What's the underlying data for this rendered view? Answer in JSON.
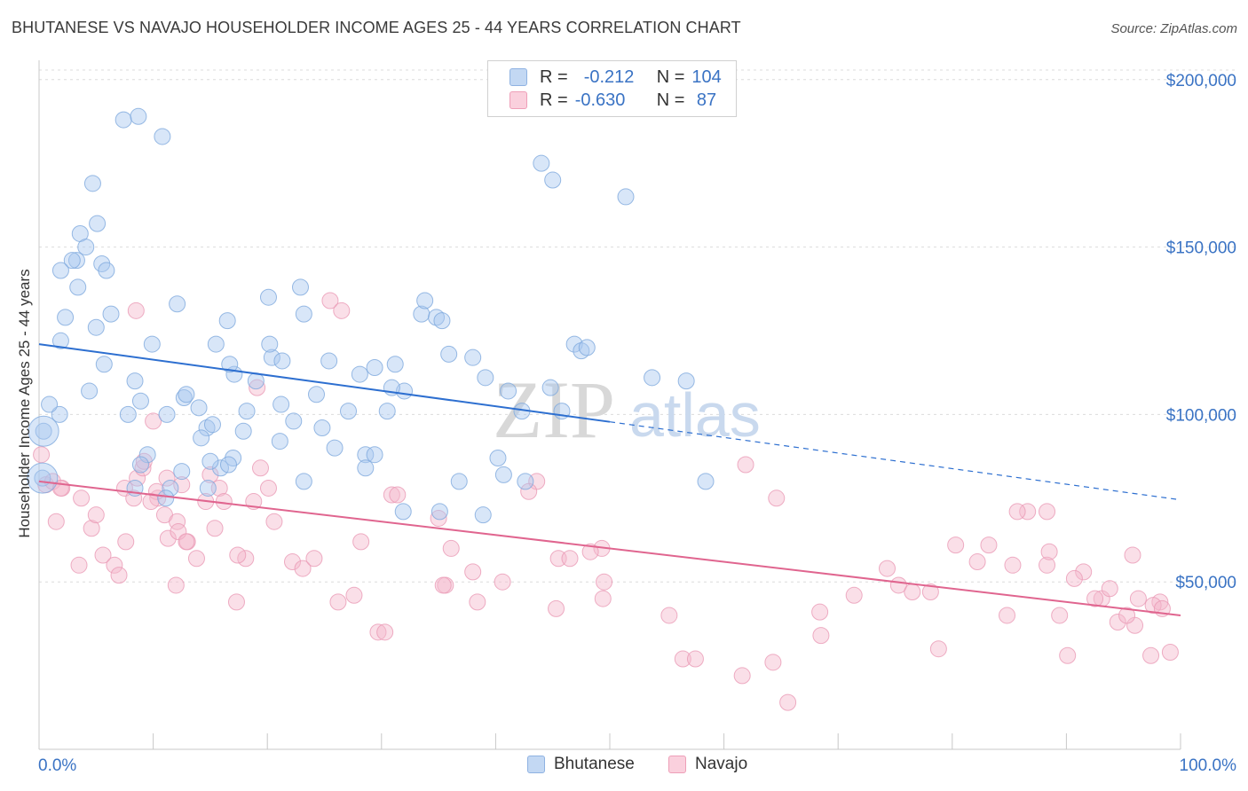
{
  "title": "BHUTANESE VS NAVAJO HOUSEHOLDER INCOME AGES 25 - 44 YEARS CORRELATION CHART",
  "source": "Source: ZipAtlas.com",
  "watermark": {
    "zip": "ZIP",
    "atlas": "atlas"
  },
  "legend": {
    "rows": [
      {
        "r_label": "R =",
        "r_value": "-0.212",
        "n_label": "N =",
        "n_value": "104",
        "color": "#a9c8ef"
      },
      {
        "r_label": "R =",
        "r_value": "-0.630",
        "n_label": "N =",
        "n_value": " 87",
        "color": "#f5b8cc"
      }
    ]
  },
  "bottom_legend": [
    "Bhutanese",
    "Navajo"
  ],
  "chart_data": {
    "type": "scatter",
    "xlabel": "",
    "ylabel": "Householder Income Ages 25 - 44 years",
    "xlim": [
      0,
      100
    ],
    "ylim": [
      0,
      210000
    ],
    "x_tick_labels": [
      "0.0%",
      "100.0%"
    ],
    "y_ticks": [
      50000,
      100000,
      150000,
      200000
    ],
    "y_tick_labels": [
      "$50,000",
      "$100,000",
      "$150,000",
      "$200,000"
    ],
    "grid": true,
    "colors": {
      "Bhutanese": "#a9c8ef",
      "Bhutanese_line": "#2d6fd0",
      "Navajo": "#f5b8cc",
      "Navajo_line": "#e0658f",
      "axis_text": "#3a73c4"
    },
    "series": [
      {
        "name": "Bhutanese",
        "trend": {
          "x": [
            0,
            50,
            100
          ],
          "y": [
            121000,
            97800,
            74500
          ],
          "solid_until": 50
        },
        "x": [
          7.4,
          8.7,
          10.8,
          4.7,
          5.1,
          3.6,
          4.1,
          3.3,
          5.5,
          2.9,
          1.9,
          2.3,
          3.4,
          5.9,
          5.0,
          1.9,
          6.3,
          1.8,
          0.9,
          0.4,
          0.3,
          5.7,
          4.4,
          8.4,
          12.1,
          9.9,
          8.9,
          15.5,
          12.7,
          14.0,
          12.9,
          17.1,
          16.7,
          11.2,
          17.9,
          14.7,
          16.5,
          20.1,
          20.4,
          22.9,
          23.2,
          7.8,
          9.5,
          8.4,
          15.9,
          15.2,
          11.5,
          8.9,
          14.2,
          15.0,
          17.0,
          20.2,
          25.4,
          21.3,
          22.3,
          24.8,
          21.2,
          18.2,
          28.6,
          29.4,
          24.3,
          31.2,
          27.1,
          28.1,
          33.5,
          32.0,
          34.8,
          30.9,
          29.4,
          30.5,
          23.2,
          25.9,
          28.6,
          19.0,
          14.8,
          12.5,
          11.1,
          16.6,
          21.1,
          36.8,
          31.9,
          35.1,
          39.1,
          41.1,
          42.3,
          35.9,
          35.3,
          33.8,
          38.0,
          46.9,
          47.5,
          48.0,
          51.4,
          53.7,
          56.7,
          58.4,
          40.2,
          40.7,
          38.9,
          42.6,
          45.8,
          44.8,
          44.0,
          45.0
        ],
        "y": [
          188000,
          189000,
          183000,
          169000,
          157000,
          154000,
          150000,
          146000,
          145000,
          146000,
          143000,
          129000,
          138000,
          143000,
          126000,
          122000,
          130000,
          100000,
          103000,
          95000,
          81000,
          115000,
          107000,
          110000,
          133000,
          121000,
          104000,
          121000,
          105000,
          102000,
          106000,
          112000,
          115000,
          100000,
          95000,
          96000,
          128000,
          135000,
          117000,
          138000,
          130000,
          100000,
          88000,
          78000,
          84000,
          97000,
          78000,
          85000,
          93000,
          86000,
          87000,
          121000,
          116000,
          116000,
          98000,
          96000,
          103000,
          101000,
          88000,
          114000,
          106000,
          115000,
          101000,
          112000,
          130000,
          107000,
          129000,
          108000,
          88000,
          101000,
          80000,
          90000,
          84000,
          110000,
          78000,
          83000,
          75000,
          85000,
          92000,
          80000,
          71000,
          71000,
          111000,
          107000,
          101000,
          118000,
          128000,
          134000,
          117000,
          121000,
          119000,
          120000,
          165000,
          111000,
          110000,
          80000,
          87000,
          82000,
          70000,
          80000,
          101000,
          108000,
          175000,
          170000
        ],
        "sizes_large": [
          {
            "x": 0.3,
            "y": 81000
          },
          {
            "x": 0.4,
            "y": 95000
          }
        ]
      },
      {
        "name": "Navajo",
        "trend": {
          "x": [
            0,
            100
          ],
          "y": [
            80000,
            40000
          ]
        },
        "x": [
          0.2,
          0.6,
          1.2,
          1.5,
          2.0,
          3.5,
          3.7,
          4.6,
          5.0,
          5.6,
          6.6,
          7.0,
          7.6,
          8.6,
          9.1,
          9.2,
          10.0,
          10.4,
          11.0,
          11.3,
          12.0,
          12.5,
          13.0,
          14.6,
          15.0,
          15.8,
          16.2,
          17.3,
          18.1,
          18.8,
          19.1,
          19.4,
          20.1,
          20.6,
          22.2,
          23.1,
          24.1,
          26.2,
          27.6,
          28.2,
          29.7,
          30.3,
          30.9,
          31.4,
          35.6,
          35.4,
          35.0,
          36.1,
          38.0,
          38.4,
          40.6,
          45.3,
          45.5,
          46.5,
          49.4,
          49.5,
          55.2,
          56.4,
          57.5,
          61.9,
          61.6,
          64.3,
          64.6,
          68.4,
          68.5,
          71.4,
          74.3,
          75.3,
          76.5,
          78.1,
          78.8,
          80.3,
          82.2,
          83.2,
          84.8,
          85.3,
          88.3,
          89.4,
          90.1,
          91.5,
          93.1,
          93.8,
          94.5,
          96.0,
          97.4,
          98.2,
          99.1
        ],
        "y": [
          88000,
          79000,
          80000,
          68000,
          78000,
          55000,
          75000,
          66000,
          70000,
          58000,
          55000,
          52000,
          62000,
          81000,
          84000,
          86000,
          98000,
          75000,
          70000,
          63000,
          49000,
          79000,
          62000,
          74000,
          82000,
          78000,
          74000,
          44000,
          57000,
          74000,
          108000,
          84000,
          78000,
          68000,
          56000,
          54000,
          57000,
          44000,
          46000,
          62000,
          35000,
          35000,
          76000,
          76000,
          49000,
          49000,
          69000,
          60000,
          53000,
          44000,
          50000,
          42000,
          57000,
          57000,
          45000,
          50000,
          40000,
          27000,
          27000,
          85000,
          22000,
          26000,
          75000,
          41000,
          34000,
          46000,
          54000,
          49000,
          47000,
          47000,
          30000,
          61000,
          56000,
          61000,
          40000,
          55000,
          55000,
          40000,
          28000,
          53000,
          45000,
          48000,
          38000,
          37000,
          28000,
          44000,
          29000
        ],
        "extra": {
          "x": [
            1.9,
            7.5,
            8.3,
            12.1,
            12.2,
            13.8,
            17.4,
            25.5,
            26.5,
            10.3,
            11.2,
            12.9,
            9.8,
            15.4,
            43.6,
            42.9,
            49.3,
            48.3,
            65.6,
            88.5,
            92.5,
            95.3,
            96.3,
            86.6,
            85.7,
            88.3,
            95.8,
            97.6,
            98.4,
            90.7,
            8.5
          ],
          "y": [
            78000,
            78000,
            75000,
            68000,
            65000,
            57000,
            58000,
            134000,
            131000,
            77000,
            81000,
            62000,
            74000,
            66000,
            80000,
            77000,
            60000,
            59000,
            14000,
            59000,
            45000,
            40000,
            45000,
            71000,
            71000,
            71000,
            58000,
            43000,
            42000,
            51000,
            131000
          ]
        }
      }
    ]
  }
}
